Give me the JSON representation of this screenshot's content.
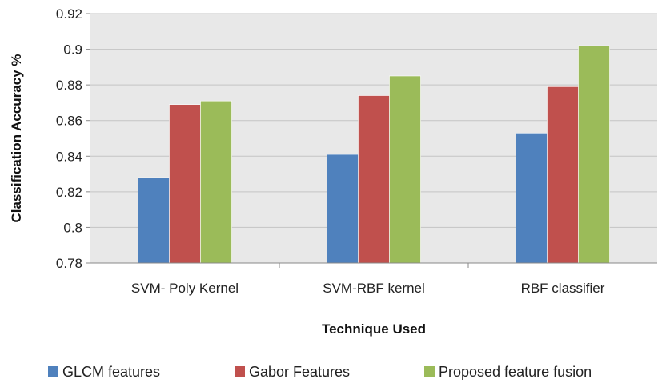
{
  "chart_data": {
    "type": "bar",
    "categories": [
      "SVM- Poly Kernel",
      "SVM-RBF kernel",
      "RBF classifier"
    ],
    "series": [
      {
        "name": "GLCM features",
        "values": [
          0.828,
          0.841,
          0.853
        ],
        "color": "#4F81BD"
      },
      {
        "name": "Gabor Features",
        "values": [
          0.869,
          0.874,
          0.879
        ],
        "color": "#C0504D"
      },
      {
        "name": "Proposed feature fusion",
        "values": [
          0.871,
          0.885,
          0.902
        ],
        "color": "#9BBB59"
      }
    ],
    "title": "",
    "xlabel": "Technique Used",
    "ylabel": "Classification Accuracy %",
    "ylim": [
      0.78,
      0.92
    ],
    "yticks": [
      "0.78",
      "0.8",
      "0.82",
      "0.84",
      "0.86",
      "0.88",
      "0.9",
      "0.92"
    ],
    "grid": true,
    "legend_position": "bottom",
    "plot_background": "#E8E8E8"
  }
}
